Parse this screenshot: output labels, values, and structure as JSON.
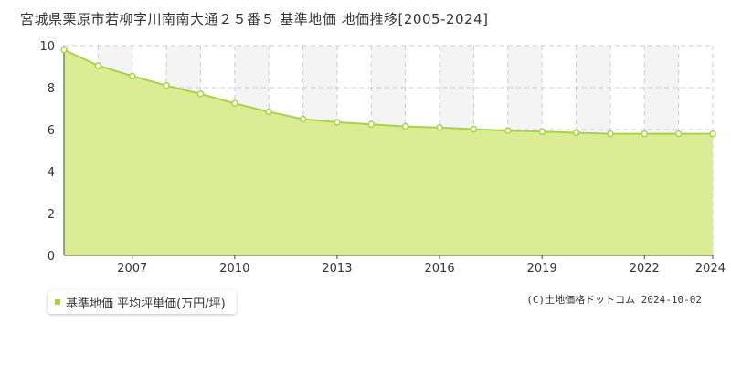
{
  "title": "宮城県栗原市若柳字川南南大通２５番５ 基準地価 地価推移[2005-2024]",
  "legend_label": "基準地価 平均坪単価(万円/坪)",
  "credit": "(C)土地価格ドットコム 2024-10-02",
  "colors": {
    "fill": "#dcec94",
    "line": "#a8d63a",
    "grid": "#cccccc",
    "band": "#f4f4f4"
  },
  "chart_data": {
    "type": "area",
    "title": "宮城県栗原市若柳字川南南大通２５番５ 基準地価 地価推移[2005-2024]",
    "x": [
      2005,
      2006,
      2007,
      2008,
      2009,
      2010,
      2011,
      2012,
      2013,
      2014,
      2015,
      2016,
      2017,
      2018,
      2019,
      2020,
      2021,
      2022,
      2023,
      2024
    ],
    "series": [
      {
        "name": "基準地価 平均坪単価(万円/坪)",
        "values": [
          9.8,
          9.05,
          8.55,
          8.1,
          7.7,
          7.25,
          6.85,
          6.5,
          6.35,
          6.25,
          6.15,
          6.1,
          6.02,
          5.95,
          5.9,
          5.85,
          5.8,
          5.8,
          5.8,
          5.8
        ]
      }
    ],
    "xlim": [
      2005,
      2024
    ],
    "ylim": [
      0,
      10
    ],
    "x_ticks": [
      2007,
      2010,
      2013,
      2016,
      2019,
      2022,
      2024
    ],
    "y_ticks": [
      0,
      2,
      4,
      6,
      8,
      10
    ],
    "grid": true,
    "legend_position": "bottom-left"
  }
}
